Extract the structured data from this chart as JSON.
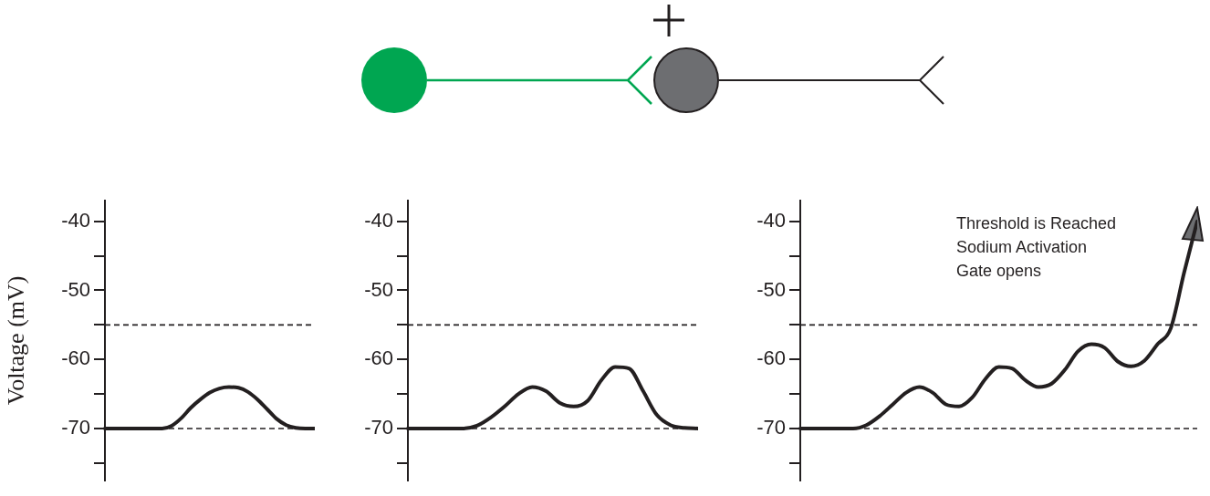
{
  "chart_data": [
    {
      "type": "line",
      "ylabel": "Voltage (mV)",
      "categories": [
        null,
        null,
        null,
        null,
        null,
        null,
        null,
        null,
        null,
        null,
        null,
        null,
        null,
        null,
        null,
        null,
        null,
        null,
        null,
        null,
        null,
        null,
        null
      ],
      "series": [
        {
          "color": "#231f20",
          "values": [
            -70,
            -70,
            -70,
            -70,
            -70,
            -70,
            -70,
            -69.6,
            -68.5,
            -67,
            -65.8,
            -64.8,
            -64.2,
            -64,
            -64.1,
            -64.7,
            -65.8,
            -67.2,
            -68.6,
            -69.5,
            -69.9,
            -70,
            -70
          ]
        }
      ],
      "ylim": [
        -77.5,
        -37
      ],
      "yticks": [
        {
          "value": -75,
          "label": null
        },
        -70,
        {
          "value": -65,
          "label": null
        },
        -60,
        {
          "value": -55,
          "label": null
        },
        -50,
        {
          "value": -45,
          "label": null
        },
        -40
      ],
      "ref_lines": [
        {
          "axis": "y",
          "value": -55,
          "line_style": "dashed"
        },
        {
          "axis": "y",
          "value": -70,
          "line_style": "dashed"
        }
      ],
      "tick_labels": "y",
      "grid": false,
      "legend": false
    },
    {
      "type": "line",
      "categories": [
        null,
        null,
        null,
        null,
        null,
        null,
        null,
        null,
        null,
        null,
        null,
        null,
        null,
        null,
        null,
        null,
        null,
        null,
        null,
        null,
        null,
        null
      ],
      "series": [
        {
          "color": "#231f20",
          "values": [
            -70,
            -70,
            -70,
            -70,
            -70,
            -69.6,
            -68.4,
            -66.8,
            -65,
            -64,
            -64.6,
            -66.3,
            -66.8,
            -66,
            -63,
            -61.1,
            -61.3,
            -64.5,
            -68,
            -69.5,
            -69.9,
            -70
          ]
        }
      ],
      "ylim": [
        -77.5,
        -37
      ],
      "yticks": [
        {
          "value": -75,
          "label": null
        },
        -70,
        {
          "value": -65,
          "label": null
        },
        -60,
        {
          "value": -55,
          "label": null
        },
        -50,
        {
          "value": -45,
          "label": null
        },
        -40
      ],
      "ref_lines": [
        {
          "axis": "y",
          "value": -55,
          "line_style": "dashed"
        },
        {
          "axis": "y",
          "value": -70,
          "line_style": "dashed"
        }
      ],
      "tick_labels": "y",
      "grid": false,
      "legend": false
    },
    {
      "type": "line",
      "categories": [
        null,
        null,
        null,
        null,
        null,
        null,
        null,
        null,
        null,
        null,
        null,
        null,
        null,
        null,
        null,
        null,
        null,
        null,
        null,
        null,
        null,
        null,
        null,
        null,
        null,
        null,
        null,
        null,
        null,
        null,
        null
      ],
      "series": [
        {
          "color": "#231f20",
          "values": [
            -70,
            -70,
            -70,
            -70,
            -70,
            -69.5,
            -68.2,
            -66.5,
            -64.8,
            -64,
            -64.8,
            -66.5,
            -66.8,
            -65.5,
            -62.8,
            -61.1,
            -61.3,
            -63,
            -64,
            -63.5,
            -61.5,
            -58.8,
            -57.8,
            -58.3,
            -60.3,
            -61,
            -60.2,
            -57.8,
            -55.5,
            -47.5,
            -40
          ]
        }
      ],
      "ylim": [
        -77.5,
        -37
      ],
      "yticks": [
        {
          "value": -75,
          "label": null
        },
        -70,
        {
          "value": -65,
          "label": null
        },
        -60,
        {
          "value": -55,
          "label": null
        },
        -50,
        {
          "value": -45,
          "label": null
        },
        -40
      ],
      "ref_lines": [
        {
          "axis": "y",
          "value": -55,
          "line_style": "dashed"
        },
        {
          "axis": "y",
          "value": -70,
          "line_style": "dashed"
        }
      ],
      "annotations": [
        "Threshold is Reached\nSodium Activation\nGate opens"
      ],
      "tick_labels": "y",
      "grid": false,
      "legend": false
    }
  ]
}
